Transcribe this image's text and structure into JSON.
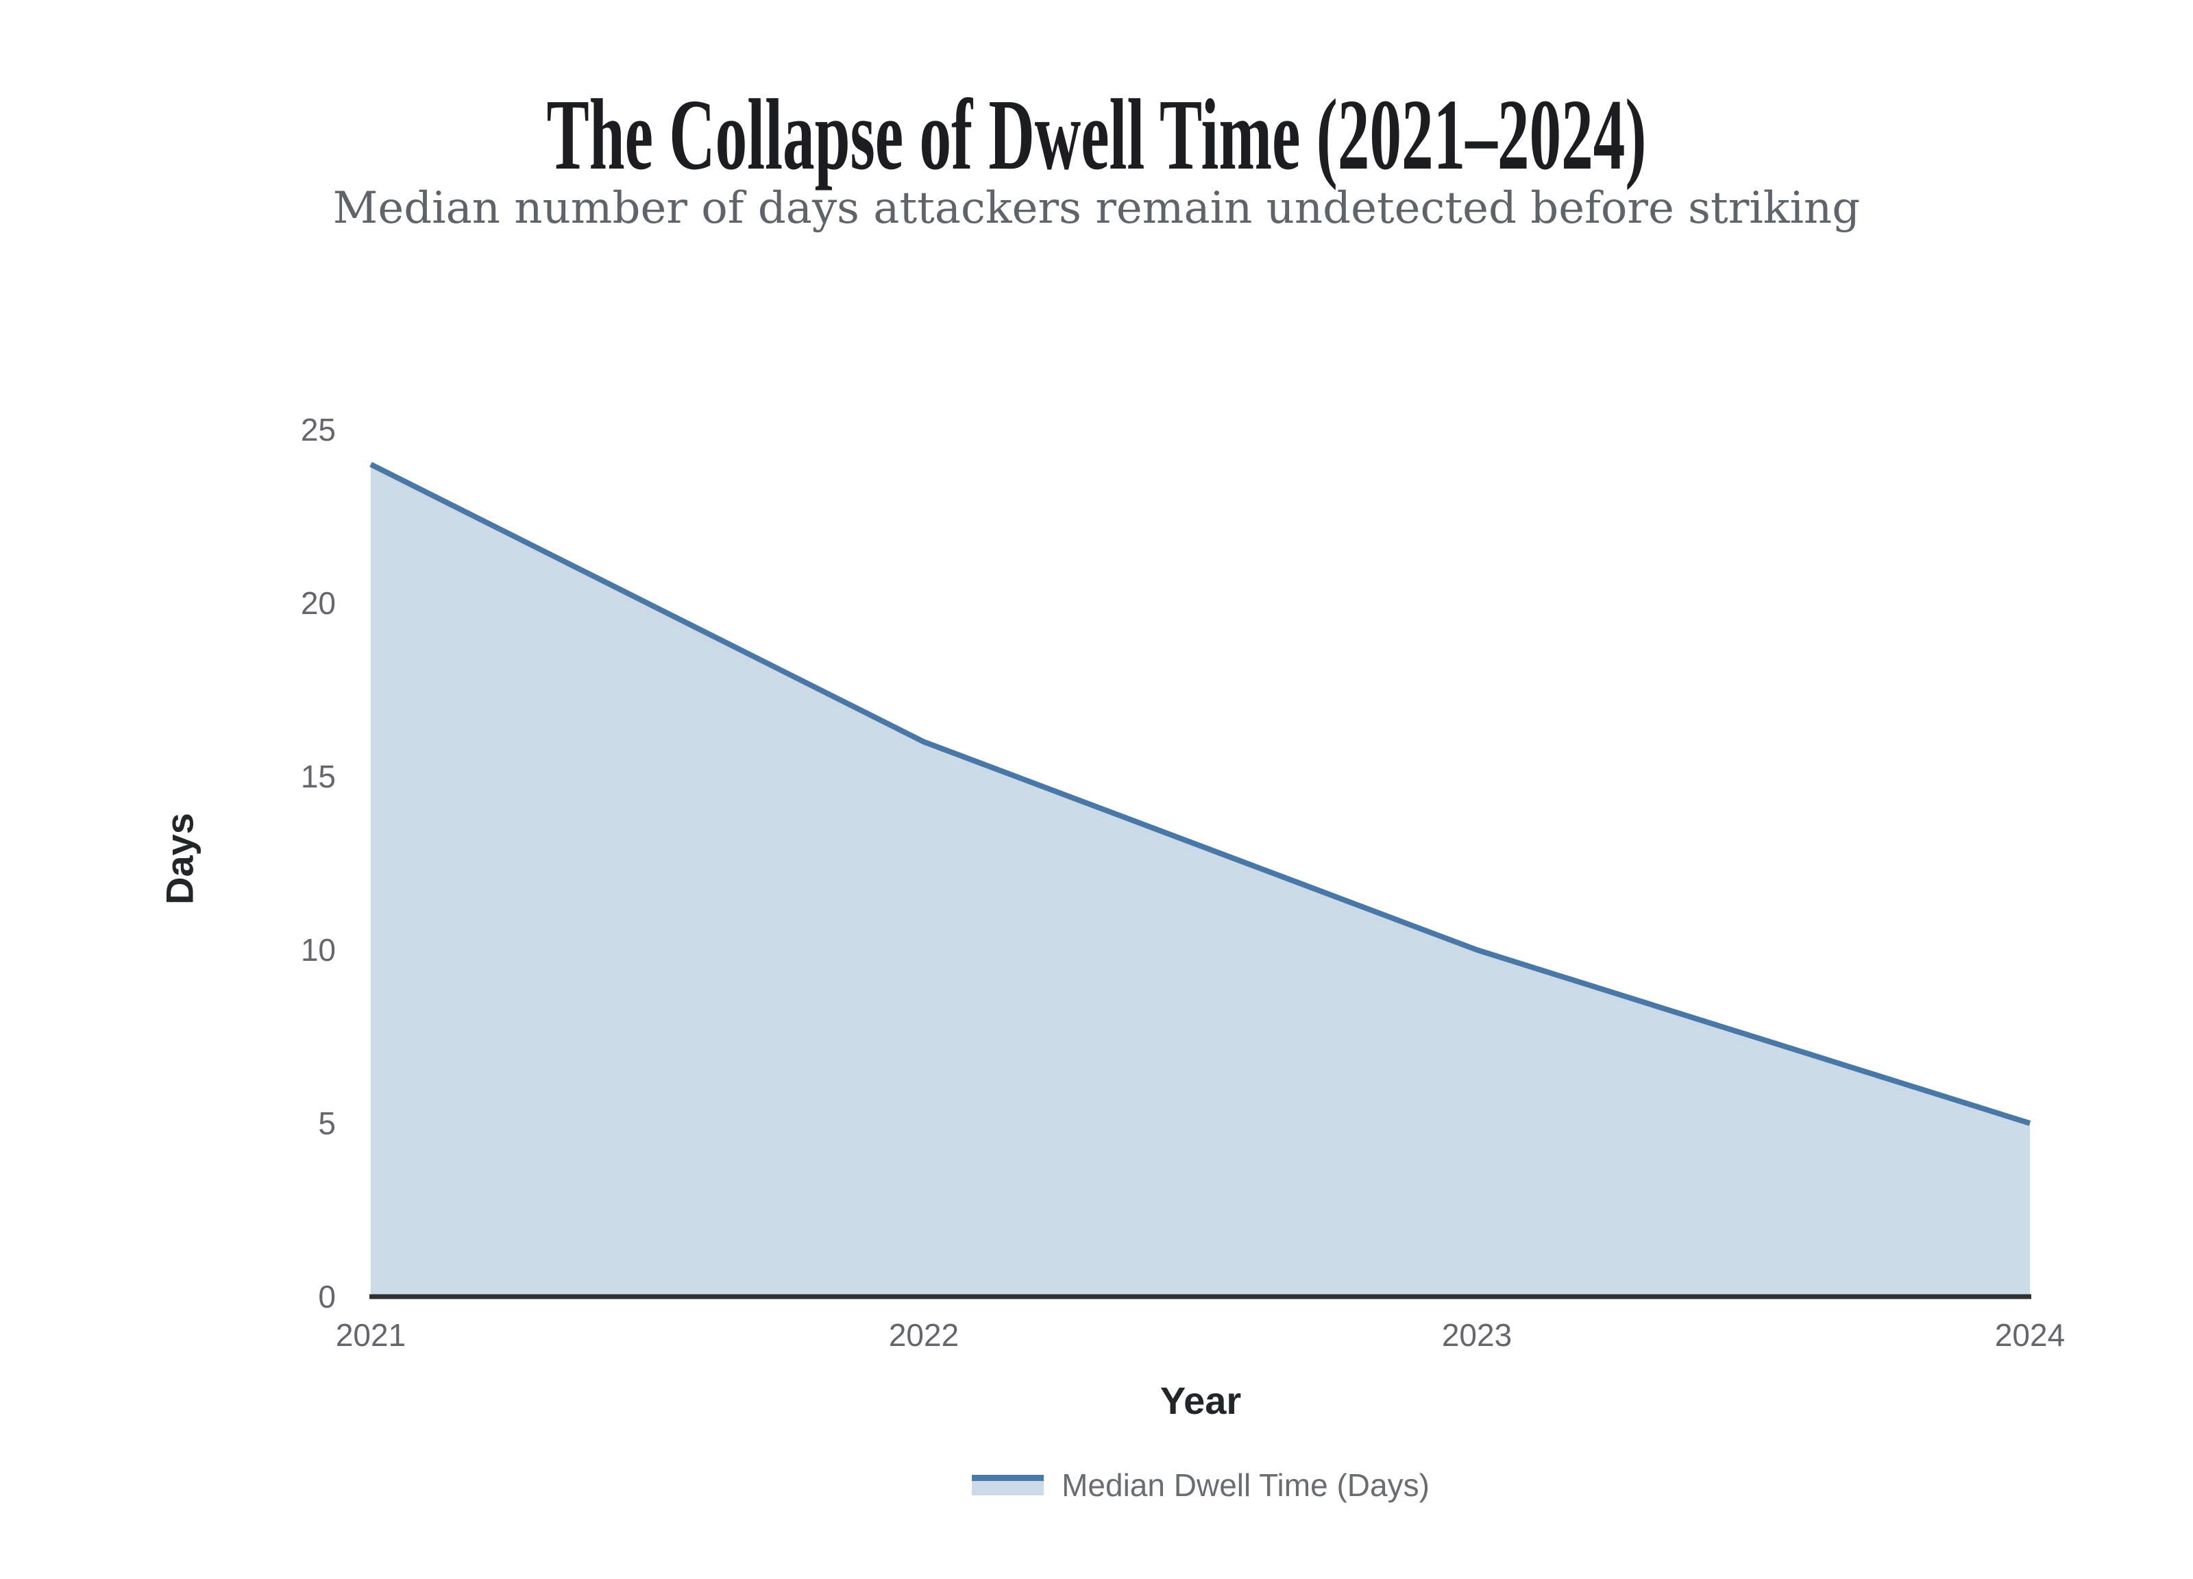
{
  "title": "The Collapse of Dwell Time (2021–2024)",
  "subtitle": "Median number of days attackers remain undetected before striking",
  "chart_data": {
    "type": "area",
    "x": [
      "2021",
      "2022",
      "2023",
      "2024"
    ],
    "series": [
      {
        "name": "Median Dwell Time (Days)",
        "values": [
          24,
          16,
          10,
          5
        ]
      }
    ],
    "xlabel": "Year",
    "ylabel": "Days",
    "ylim": [
      0,
      25
    ],
    "yticks": [
      0,
      5,
      10,
      15,
      20,
      25
    ],
    "grid": false,
    "legend_position": "bottom",
    "colors": {
      "line": "#4878a8",
      "fill": "#ccd9e6",
      "axis_line": "#2e3134",
      "tick_text": "#63676d",
      "title_text": "#1b1d21",
      "subtitle_text": "#5f646a",
      "axis_title_text": "#232629"
    }
  }
}
